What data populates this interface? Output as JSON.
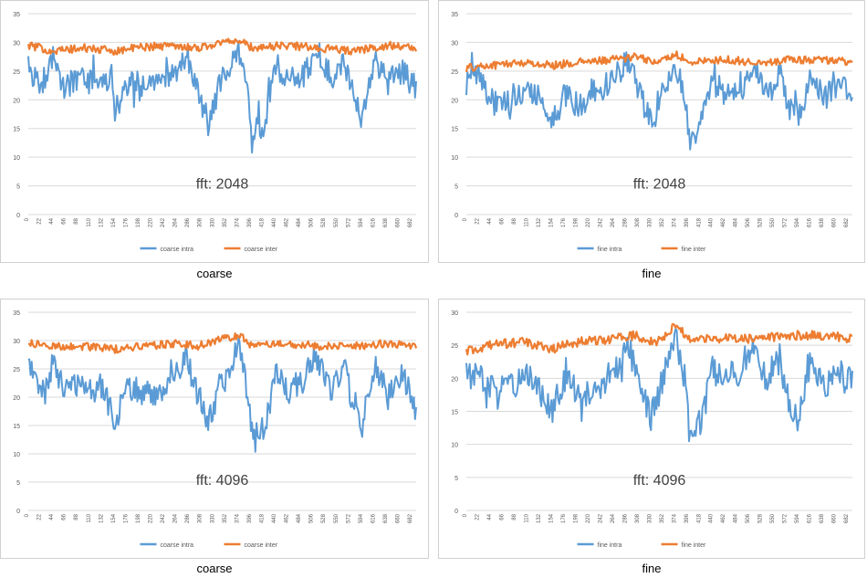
{
  "colors": {
    "intra": "#5B9BD5",
    "inter": "#ED7D31",
    "grid": "#d9d9d9",
    "tick": "#595959"
  },
  "charts": [
    {
      "caption": "coarse",
      "chart_data": {
        "type": "line",
        "annotation": "fft: 2048",
        "ylim": [
          0,
          35
        ],
        "yticks": [
          0,
          5,
          10,
          15,
          20,
          25,
          30,
          35
        ],
        "xlim": [
          0,
          690
        ],
        "xticks": [
          0,
          22,
          44,
          66,
          88,
          110,
          132,
          154,
          176,
          198,
          220,
          242,
          264,
          286,
          308,
          330,
          352,
          374,
          396,
          418,
          440,
          462,
          484,
          506,
          528,
          550,
          572,
          594,
          616,
          638,
          660,
          682
        ],
        "grid": true,
        "legend_position": "bottom",
        "series": [
          {
            "name": "coarse intra",
            "key": "intra",
            "anchors": [
              [
                0,
                27
              ],
              [
                10,
                24
              ],
              [
                25,
                23
              ],
              [
                44,
                27
              ],
              [
                66,
                22
              ],
              [
                88,
                24
              ],
              [
                110,
                23
              ],
              [
                130,
                22
              ],
              [
                150,
                25
              ],
              [
                154,
                17.5
              ],
              [
                176,
                23
              ],
              [
                200,
                22
              ],
              [
                230,
                23
              ],
              [
                264,
                25
              ],
              [
                280,
                28
              ],
              [
                300,
                22
              ],
              [
                320,
                16
              ],
              [
                345,
                24
              ],
              [
                374,
                29
              ],
              [
                390,
                22
              ],
              [
                400,
                14
              ],
              [
                420,
                16
              ],
              [
                440,
                26
              ],
              [
                462,
                24
              ],
              [
                490,
                24
              ],
              [
                510,
                28
              ],
              [
                540,
                24
              ],
              [
                560,
                27
              ],
              [
                575,
                22
              ],
              [
                594,
                16
              ],
              [
                616,
                27
              ],
              [
                640,
                23
              ],
              [
                665,
                25
              ],
              [
                690,
                22
              ]
            ]
          },
          {
            "name": "coarse inter",
            "key": "inter",
            "anchors": [
              [
                0,
                29.5
              ],
              [
                44,
                28.5
              ],
              [
                100,
                29
              ],
              [
                154,
                28.5
              ],
              [
                200,
                29.2
              ],
              [
                264,
                29.5
              ],
              [
                300,
                29
              ],
              [
                370,
                30.5
              ],
              [
                400,
                29
              ],
              [
                460,
                29.5
              ],
              [
                520,
                29
              ],
              [
                580,
                28.5
              ],
              [
                640,
                29.5
              ],
              [
                690,
                29
              ]
            ]
          }
        ]
      }
    },
    {
      "caption": "fine",
      "chart_data": {
        "type": "line",
        "annotation": "fft: 2048",
        "ylim": [
          0,
          35
        ],
        "yticks": [
          0,
          5,
          10,
          15,
          20,
          25,
          30,
          35
        ],
        "xlim": [
          0,
          690
        ],
        "xticks": [
          0,
          22,
          44,
          66,
          88,
          110,
          132,
          154,
          176,
          198,
          220,
          242,
          264,
          286,
          308,
          330,
          352,
          374,
          396,
          418,
          440,
          462,
          484,
          506,
          528,
          550,
          572,
          594,
          616,
          638,
          660,
          682
        ],
        "grid": true,
        "legend_position": "bottom",
        "series": [
          {
            "name": "fine intra",
            "key": "intra",
            "anchors": [
              [
                0,
                23
              ],
              [
                22,
                24
              ],
              [
                44,
                20
              ],
              [
                66,
                19
              ],
              [
                88,
                21
              ],
              [
                110,
                22
              ],
              [
                130,
                21
              ],
              [
                154,
                16
              ],
              [
                176,
                21
              ],
              [
                200,
                19
              ],
              [
                230,
                21
              ],
              [
                264,
                24
              ],
              [
                290,
                27
              ],
              [
                310,
                21
              ],
              [
                330,
                16
              ],
              [
                352,
                22
              ],
              [
                374,
                26
              ],
              [
                390,
                21
              ],
              [
                400,
                13
              ],
              [
                420,
                16
              ],
              [
                440,
                24
              ],
              [
                462,
                21
              ],
              [
                490,
                21
              ],
              [
                510,
                25
              ],
              [
                540,
                21
              ],
              [
                560,
                25
              ],
              [
                575,
                19
              ],
              [
                594,
                17
              ],
              [
                616,
                24
              ],
              [
                640,
                20
              ],
              [
                665,
                23
              ],
              [
                690,
                21
              ]
            ]
          },
          {
            "name": "fine inter",
            "key": "inter",
            "anchors": [
              [
                0,
                25.5
              ],
              [
                44,
                26
              ],
              [
                100,
                26.5
              ],
              [
                154,
                26
              ],
              [
                200,
                26.5
              ],
              [
                264,
                27
              ],
              [
                300,
                27.5
              ],
              [
                340,
                26.5
              ],
              [
                374,
                28
              ],
              [
                400,
                26.5
              ],
              [
                460,
                27
              ],
              [
                520,
                26.5
              ],
              [
                580,
                27
              ],
              [
                640,
                27
              ],
              [
                690,
                26.5
              ]
            ]
          }
        ]
      }
    },
    {
      "caption": "coarse",
      "chart_data": {
        "type": "line",
        "annotation": "fft: 4096",
        "ylim": [
          0,
          35
        ],
        "yticks": [
          0,
          5,
          10,
          15,
          20,
          25,
          30,
          35
        ],
        "xlim": [
          0,
          690
        ],
        "xticks": [
          0,
          22,
          44,
          66,
          88,
          110,
          132,
          154,
          176,
          198,
          220,
          242,
          264,
          286,
          308,
          330,
          352,
          374,
          396,
          418,
          440,
          462,
          484,
          506,
          528,
          550,
          572,
          594,
          616,
          638,
          660,
          682
        ],
        "grid": true,
        "legend_position": "bottom",
        "series": [
          {
            "name": "coarse intra",
            "key": "intra",
            "anchors": [
              [
                0,
                27
              ],
              [
                15,
                22
              ],
              [
                30,
                21
              ],
              [
                44,
                26
              ],
              [
                66,
                21
              ],
              [
                88,
                22
              ],
              [
                110,
                21
              ],
              [
                132,
                22
              ],
              [
                154,
                15.5
              ],
              [
                176,
                22
              ],
              [
                200,
                21
              ],
              [
                230,
                20
              ],
              [
                264,
                24
              ],
              [
                280,
                27
              ],
              [
                300,
                21
              ],
              [
                320,
                16
              ],
              [
                345,
                22
              ],
              [
                374,
                29
              ],
              [
                390,
                21
              ],
              [
                398,
                13.5
              ],
              [
                420,
                14.5
              ],
              [
                440,
                24
              ],
              [
                462,
                21
              ],
              [
                490,
                23
              ],
              [
                510,
                28
              ],
              [
                540,
                21
              ],
              [
                560,
                26
              ],
              [
                575,
                20
              ],
              [
                594,
                15
              ],
              [
                616,
                26
              ],
              [
                640,
                20
              ],
              [
                665,
                24
              ],
              [
                690,
                19
              ]
            ]
          },
          {
            "name": "coarse inter",
            "key": "inter",
            "anchors": [
              [
                0,
                29.5
              ],
              [
                44,
                29
              ],
              [
                100,
                29
              ],
              [
                154,
                28.5
              ],
              [
                200,
                29
              ],
              [
                264,
                29.5
              ],
              [
                300,
                29
              ],
              [
                374,
                31
              ],
              [
                400,
                29
              ],
              [
                460,
                29.5
              ],
              [
                520,
                29
              ],
              [
                580,
                29
              ],
              [
                640,
                29.5
              ],
              [
                690,
                29
              ]
            ]
          }
        ]
      }
    },
    {
      "caption": "fine",
      "chart_data": {
        "type": "line",
        "annotation": "fft: 4096",
        "ylim": [
          0,
          30
        ],
        "yticks": [
          0,
          5,
          10,
          15,
          20,
          25,
          30
        ],
        "xlim": [
          0,
          690
        ],
        "xticks": [
          0,
          22,
          44,
          66,
          88,
          110,
          132,
          154,
          176,
          198,
          220,
          242,
          264,
          286,
          308,
          330,
          352,
          374,
          396,
          418,
          440,
          462,
          484,
          506,
          528,
          550,
          572,
          594,
          616,
          638,
          660,
          682
        ],
        "grid": true,
        "legend_position": "bottom",
        "series": [
          {
            "name": "fine intra",
            "key": "intra",
            "anchors": [
              [
                0,
                21
              ],
              [
                22,
                20
              ],
              [
                44,
                19
              ],
              [
                66,
                18
              ],
              [
                88,
                19
              ],
              [
                110,
                20
              ],
              [
                132,
                19
              ],
              [
                154,
                15
              ],
              [
                176,
                20
              ],
              [
                200,
                18
              ],
              [
                230,
                18
              ],
              [
                264,
                21
              ],
              [
                290,
                25
              ],
              [
                310,
                19
              ],
              [
                330,
                14
              ],
              [
                352,
                20
              ],
              [
                374,
                27
              ],
              [
                390,
                20
              ],
              [
                400,
                12
              ],
              [
                420,
                13.5
              ],
              [
                440,
                22
              ],
              [
                462,
                20
              ],
              [
                490,
                21
              ],
              [
                510,
                25
              ],
              [
                540,
                19
              ],
              [
                560,
                23
              ],
              [
                575,
                17
              ],
              [
                594,
                14
              ],
              [
                616,
                23
              ],
              [
                640,
                18
              ],
              [
                665,
                21
              ],
              [
                690,
                19
              ]
            ]
          },
          {
            "name": "fine inter",
            "key": "inter",
            "anchors": [
              [
                0,
                24
              ],
              [
                44,
                25
              ],
              [
                100,
                25.5
              ],
              [
                154,
                24.5
              ],
              [
                200,
                25.5
              ],
              [
                264,
                26
              ],
              [
                300,
                26.5
              ],
              [
                340,
                25.5
              ],
              [
                374,
                28
              ],
              [
                400,
                26
              ],
              [
                460,
                26
              ],
              [
                520,
                26
              ],
              [
                580,
                26.5
              ],
              [
                640,
                26.5
              ],
              [
                690,
                26
              ]
            ]
          }
        ]
      }
    }
  ]
}
